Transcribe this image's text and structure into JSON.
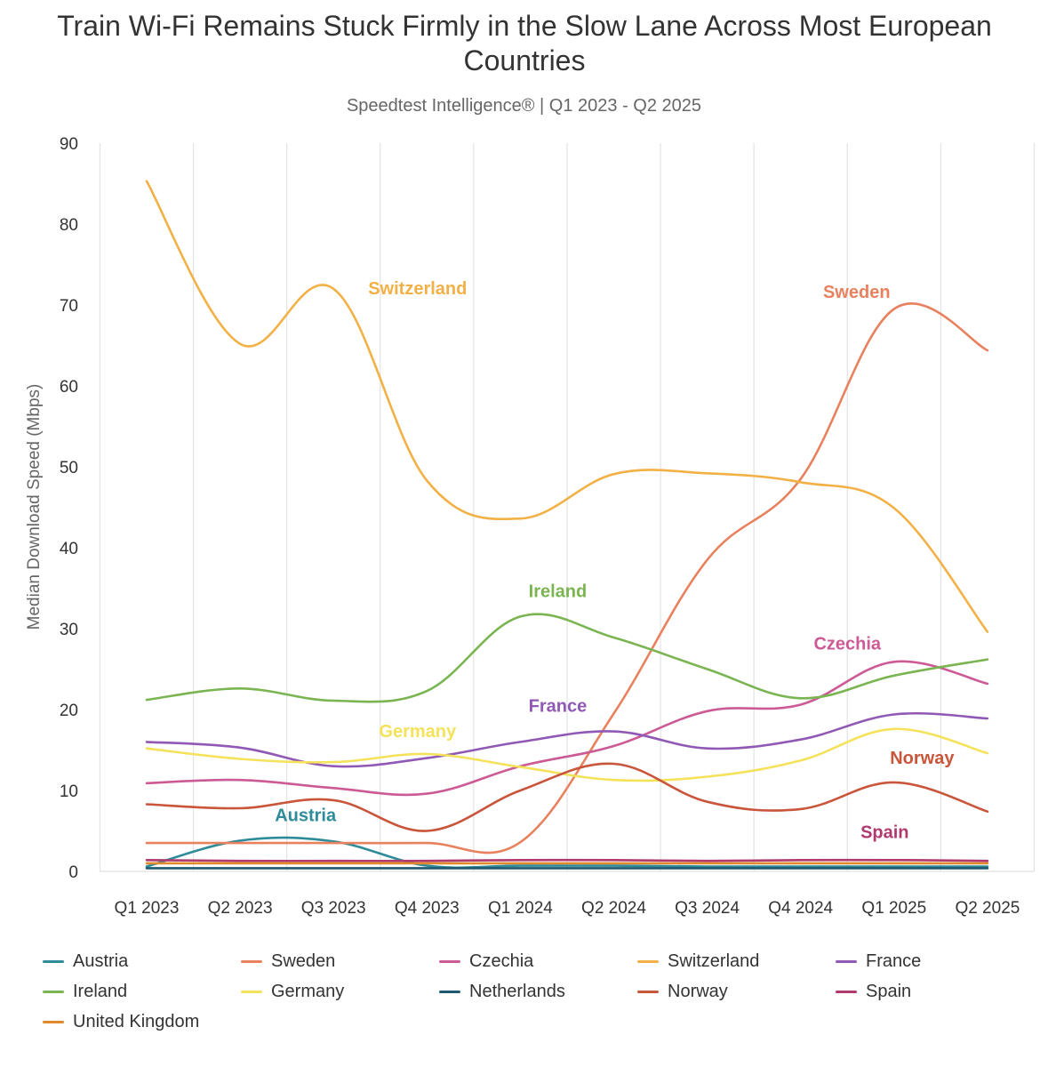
{
  "chart_data": {
    "type": "line",
    "title": "Train Wi-Fi Remains Stuck Firmly in the Slow Lane Across Most European Countries",
    "subtitle": "Speedtest Intelligence® | Q1 2023 - Q2 2025",
    "xlabel": "",
    "ylabel": "Median Download Speed (Mbps)",
    "ylim": [
      0,
      90
    ],
    "yticks": [
      0,
      10,
      20,
      30,
      40,
      50,
      60,
      70,
      80,
      90
    ],
    "grid": "vertical",
    "legend_position": "bottom",
    "categories": [
      "Q1 2023",
      "Q2 2023",
      "Q3 2023",
      "Q4 2023",
      "Q1 2024",
      "Q2 2024",
      "Q3 2024",
      "Q4 2024",
      "Q1 2025",
      "Q2 2025"
    ],
    "series": [
      {
        "name": "Austria",
        "color": "#2e8b9a",
        "label": "Austria",
        "values": [
          0.6,
          3.8,
          3.7,
          0.7,
          0.7,
          0.7,
          0.6,
          0.6,
          0.6,
          0.6
        ]
      },
      {
        "name": "Sweden",
        "color": "#e8825e",
        "label": "Sweden",
        "values": [
          3.5,
          3.5,
          3.5,
          3.5,
          3.6,
          19.5,
          38.5,
          48.5,
          69.5,
          64.4
        ]
      },
      {
        "name": "Czechia",
        "color": "#cc5a95",
        "label": "Czechia",
        "values": [
          10.9,
          11.3,
          10.3,
          9.6,
          13.0,
          15.5,
          19.8,
          20.6,
          25.9,
          23.2
        ]
      },
      {
        "name": "Switzerland",
        "color": "#f2b146",
        "label": "Switzerland",
        "values": [
          85.3,
          65.2,
          72.0,
          48.3,
          43.6,
          49.1,
          49.2,
          48.1,
          44.9,
          29.6
        ]
      },
      {
        "name": "France",
        "color": "#8f59b5",
        "label": "France",
        "values": [
          16.0,
          15.3,
          13.0,
          14.0,
          16.0,
          17.3,
          15.2,
          16.3,
          19.4,
          18.9
        ]
      },
      {
        "name": "Ireland",
        "color": "#7ab552",
        "label": "Ireland",
        "values": [
          21.2,
          22.6,
          21.1,
          22.3,
          31.5,
          28.9,
          25.0,
          21.4,
          24.2,
          26.2
        ]
      },
      {
        "name": "Germany",
        "color": "#f3e25a",
        "label": "Germany",
        "values": [
          15.2,
          13.9,
          13.5,
          14.5,
          12.9,
          11.3,
          11.7,
          13.7,
          17.6,
          14.6
        ]
      },
      {
        "name": "Netherlands",
        "color": "#1f5870",
        "label": "",
        "values": [
          0.4,
          0.4,
          0.4,
          0.4,
          0.4,
          0.4,
          0.4,
          0.4,
          0.4,
          0.4
        ]
      },
      {
        "name": "Norway",
        "color": "#c9553b",
        "label": "Norway",
        "values": [
          8.3,
          7.8,
          8.8,
          5.0,
          10.0,
          13.3,
          8.6,
          7.7,
          11.0,
          7.4
        ]
      },
      {
        "name": "Spain",
        "color": "#b03a6e",
        "label": "Spain",
        "values": [
          1.4,
          1.3,
          1.3,
          1.3,
          1.4,
          1.4,
          1.3,
          1.4,
          1.4,
          1.3
        ]
      },
      {
        "name": "United Kingdom",
        "color": "#e08a2d",
        "label": "",
        "values": [
          1.0,
          1.0,
          1.0,
          1.0,
          1.0,
          1.0,
          1.0,
          1.0,
          1.0,
          1.0
        ]
      }
    ],
    "annotations": [
      {
        "series": "Switzerland",
        "text": "Switzerland",
        "x_index": 2.9,
        "y": 71.3
      },
      {
        "series": "Sweden",
        "text": "Sweden",
        "x_index": 7.6,
        "y": 70.9
      },
      {
        "series": "Ireland",
        "text": "Ireland",
        "x_index": 4.4,
        "y": 33.9
      },
      {
        "series": "Czechia",
        "text": "Czechia",
        "x_index": 7.5,
        "y": 27.4
      },
      {
        "series": "France",
        "text": "France",
        "x_index": 4.4,
        "y": 19.7
      },
      {
        "series": "Germany",
        "text": "Germany",
        "x_index": 2.9,
        "y": 16.6
      },
      {
        "series": "Norway",
        "text": "Norway",
        "x_index": 8.3,
        "y": 13.3
      },
      {
        "series": "Austria",
        "text": "Austria",
        "x_index": 1.7,
        "y": 6.2
      },
      {
        "series": "Spain",
        "text": "Spain",
        "x_index": 7.9,
        "y": 4.1
      }
    ]
  }
}
